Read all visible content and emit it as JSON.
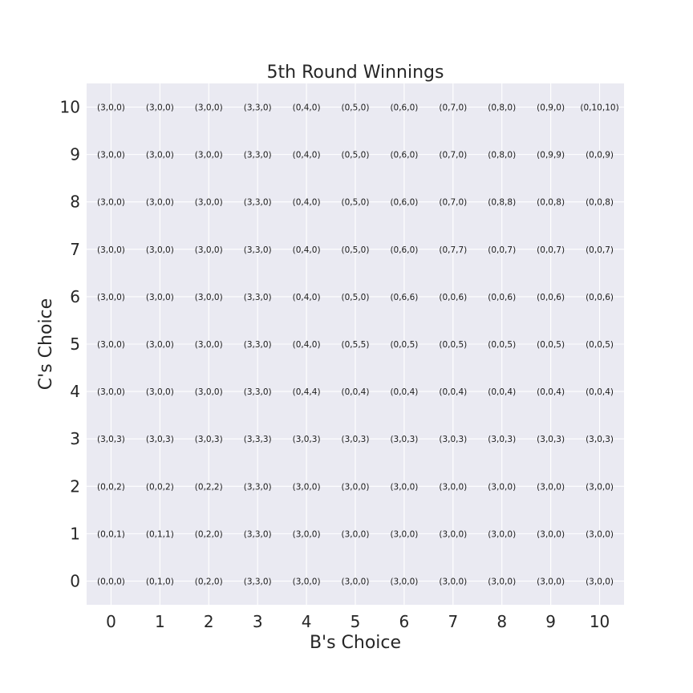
{
  "chart_data": {
    "type": "table",
    "title": "5th Round Winnings",
    "xlabel": "B's Choice",
    "ylabel": "C's Choice",
    "x": [
      0,
      1,
      2,
      3,
      4,
      5,
      6,
      7,
      8,
      9,
      10
    ],
    "y": [
      0,
      1,
      2,
      3,
      4,
      5,
      6,
      7,
      8,
      9,
      10
    ],
    "xlim": [
      -0.5,
      10.5
    ],
    "ylim": [
      -0.5,
      10.5
    ],
    "grid": true,
    "colors": {
      "background": "#eaeaf2",
      "grid": "#ffffff",
      "text": "#262626"
    },
    "cells": [
      [
        "(0,0,0)",
        "(0,1,0)",
        "(0,2,0)",
        "(3,3,0)",
        "(3,0,0)",
        "(3,0,0)",
        "(3,0,0)",
        "(3,0,0)",
        "(3,0,0)",
        "(3,0,0)",
        "(3,0,0)"
      ],
      [
        "(0,0,1)",
        "(0,1,1)",
        "(0,2,0)",
        "(3,3,0)",
        "(3,0,0)",
        "(3,0,0)",
        "(3,0,0)",
        "(3,0,0)",
        "(3,0,0)",
        "(3,0,0)",
        "(3,0,0)"
      ],
      [
        "(0,0,2)",
        "(0,0,2)",
        "(0,2,2)",
        "(3,3,0)",
        "(3,0,0)",
        "(3,0,0)",
        "(3,0,0)",
        "(3,0,0)",
        "(3,0,0)",
        "(3,0,0)",
        "(3,0,0)"
      ],
      [
        "(3,0,3)",
        "(3,0,3)",
        "(3,0,3)",
        "(3,3,3)",
        "(3,0,3)",
        "(3,0,3)",
        "(3,0,3)",
        "(3,0,3)",
        "(3,0,3)",
        "(3,0,3)",
        "(3,0,3)"
      ],
      [
        "(3,0,0)",
        "(3,0,0)",
        "(3,0,0)",
        "(3,3,0)",
        "(0,4,4)",
        "(0,0,4)",
        "(0,0,4)",
        "(0,0,4)",
        "(0,0,4)",
        "(0,0,4)",
        "(0,0,4)"
      ],
      [
        "(3,0,0)",
        "(3,0,0)",
        "(3,0,0)",
        "(3,3,0)",
        "(0,4,0)",
        "(0,5,5)",
        "(0,0,5)",
        "(0,0,5)",
        "(0,0,5)",
        "(0,0,5)",
        "(0,0,5)"
      ],
      [
        "(3,0,0)",
        "(3,0,0)",
        "(3,0,0)",
        "(3,3,0)",
        "(0,4,0)",
        "(0,5,0)",
        "(0,6,6)",
        "(0,0,6)",
        "(0,0,6)",
        "(0,0,6)",
        "(0,0,6)"
      ],
      [
        "(3,0,0)",
        "(3,0,0)",
        "(3,0,0)",
        "(3,3,0)",
        "(0,4,0)",
        "(0,5,0)",
        "(0,6,0)",
        "(0,7,7)",
        "(0,0,7)",
        "(0,0,7)",
        "(0,0,7)"
      ],
      [
        "(3,0,0)",
        "(3,0,0)",
        "(3,0,0)",
        "(3,3,0)",
        "(0,4,0)",
        "(0,5,0)",
        "(0,6,0)",
        "(0,7,0)",
        "(0,8,8)",
        "(0,0,8)",
        "(0,0,8)"
      ],
      [
        "(3,0,0)",
        "(3,0,0)",
        "(3,0,0)",
        "(3,3,0)",
        "(0,4,0)",
        "(0,5,0)",
        "(0,6,0)",
        "(0,7,0)",
        "(0,8,0)",
        "(0,9,9)",
        "(0,0,9)"
      ],
      [
        "(3,0,0)",
        "(3,0,0)",
        "(3,0,0)",
        "(3,3,0)",
        "(0,4,0)",
        "(0,5,0)",
        "(0,6,0)",
        "(0,7,0)",
        "(0,8,0)",
        "(0,9,0)",
        "(0,10,10)"
      ]
    ]
  }
}
